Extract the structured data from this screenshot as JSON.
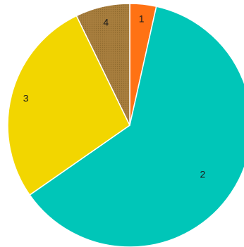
{
  "chart_data": {
    "type": "pie",
    "title": "",
    "start_angle_deg": 0,
    "direction": "clockwise",
    "legend": "none",
    "slices": [
      {
        "label": "1",
        "value": 3.5,
        "color": "#ff7214"
      },
      {
        "label": "2",
        "value": 61.8,
        "color": "#00c6b8"
      },
      {
        "label": "3",
        "value": 27.5,
        "color": "#f2d600"
      },
      {
        "label": "4",
        "value": 7.2,
        "color": "#a87e3e",
        "pattern": "dotted"
      }
    ]
  }
}
